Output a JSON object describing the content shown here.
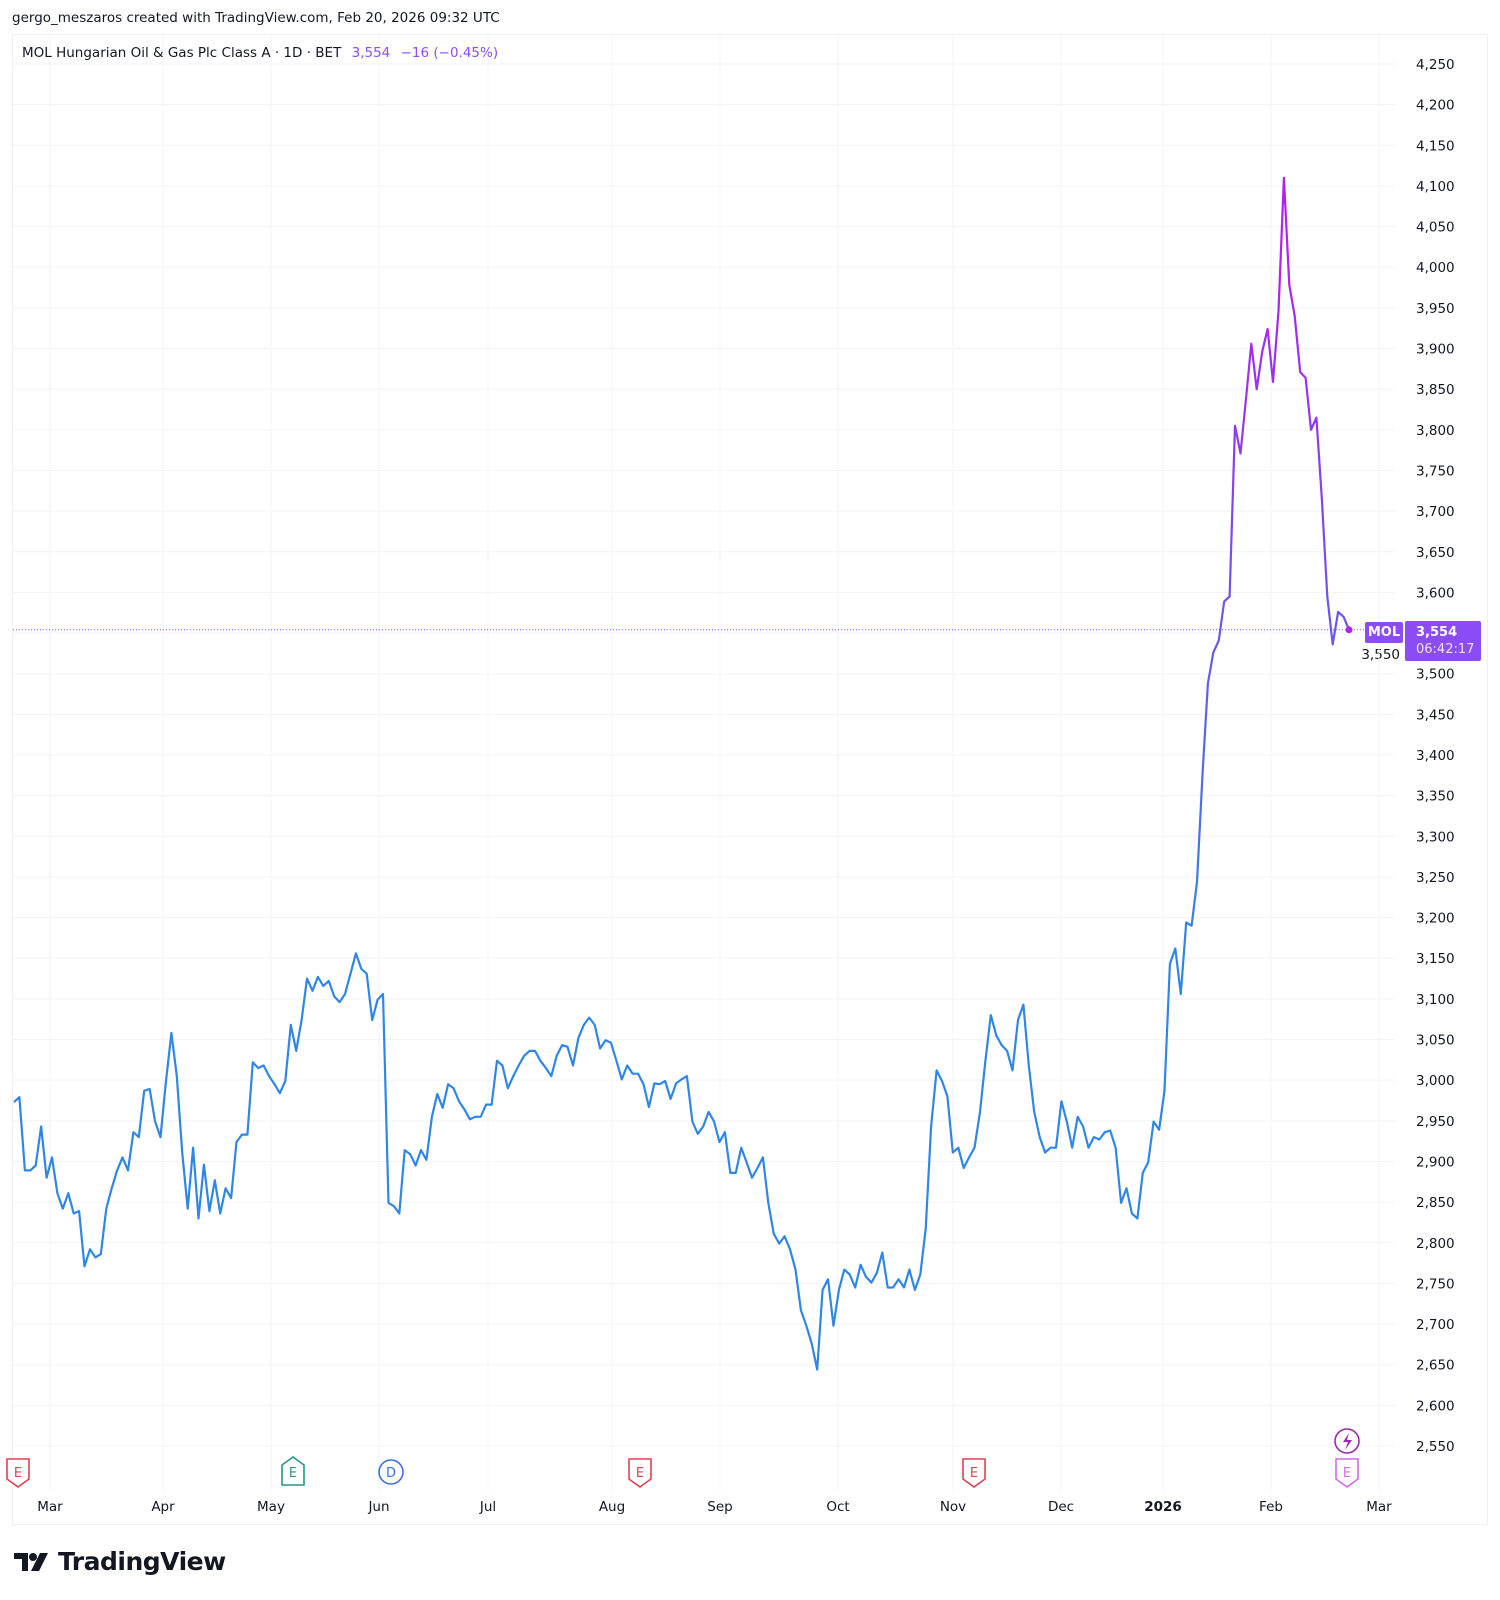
{
  "credit": "gergo_meszaros created with TradingView.com, Feb 20, 2026 09:32 UTC",
  "legend": {
    "symbol_name": "MOL Hungarian Oil & Gas Plc Class A · 1D · BET",
    "last": "3,554",
    "change": "−16 (−0.45%)"
  },
  "price_tag": {
    "symbol": "MOL",
    "price": "3,554",
    "countdown": "06:42:17"
  },
  "brand": "TradingView",
  "colors": {
    "line_start": "#2f86e6",
    "line_end": "#b021f2",
    "tag": "#8c4cf5",
    "earnings_red": "#e0404f",
    "earnings_green": "#22998a",
    "dividend_blue": "#3d6ee8",
    "earnings_upcoming": "#d16ae6"
  },
  "event_markers": [
    {
      "type": "earnings",
      "label": "E",
      "color": "#e0404f",
      "icon": "earnings-flag"
    },
    {
      "type": "earnings",
      "label": "E",
      "color": "#22998a",
      "icon": "earnings-flag"
    },
    {
      "type": "dividend",
      "label": "D",
      "color": "#3d6ee8",
      "icon": "dividend-circle"
    },
    {
      "type": "earnings",
      "label": "E",
      "color": "#e0404f",
      "icon": "earnings-flag"
    },
    {
      "type": "earnings",
      "label": "E",
      "color": "#e0404f",
      "icon": "earnings-flag"
    },
    {
      "type": "earnings",
      "label": "E",
      "color": "#d16ae6",
      "icon": "earnings-flag"
    },
    {
      "type": "news",
      "label": "",
      "color": "#9c27b0",
      "icon": "lightning-icon"
    }
  ],
  "chart_data": {
    "type": "line",
    "title": "",
    "xlabel": "",
    "ylabel": "",
    "x_ticks": [
      "Mar",
      "Apr",
      "May",
      "Jun",
      "Jul",
      "Aug",
      "Sep",
      "Oct",
      "Nov",
      "Dec",
      "2026",
      "Feb",
      "Mar"
    ],
    "y_ticks": [
      "2,550",
      "2,600",
      "2,650",
      "2,700",
      "2,750",
      "2,800",
      "2,850",
      "2,900",
      "2,950",
      "3,000",
      "3,050",
      "3,100",
      "3,150",
      "3,200",
      "3,250",
      "3,300",
      "3,350",
      "3,400",
      "3,450",
      "3,500",
      "3,550",
      "3,600",
      "3,650",
      "3,700",
      "3,750",
      "3,800",
      "3,850",
      "3,900",
      "3,950",
      "4,000",
      "4,050",
      "4,100",
      "4,150",
      "4,200",
      "4,250"
    ],
    "ylim": [
      2550,
      4250
    ],
    "grid": true,
    "last_value": 3554,
    "series": [
      {
        "values": [
          2973,
          2979,
          2889,
          2889,
          2895,
          2943,
          2880,
          2905,
          2861,
          2842,
          2861,
          2836,
          2839,
          2771,
          2792,
          2782,
          2786,
          2842,
          2867,
          2889,
          2905,
          2889,
          2936,
          2930,
          2987,
          2989,
          2949,
          2930,
          2999,
          3058,
          3005,
          2911,
          2842,
          2917,
          2830,
          2896,
          2839,
          2877,
          2836,
          2867,
          2855,
          2924,
          2933,
          2933,
          3022,
          3015,
          3018,
          3005,
          2995,
          2984,
          2999,
          3068,
          3036,
          3074,
          3125,
          3110,
          3127,
          3116,
          3122,
          3103,
          3096,
          3106,
          3131,
          3156,
          3137,
          3131,
          3074,
          3099,
          3106,
          2849,
          2845,
          2836,
          2914,
          2909,
          2895,
          2914,
          2902,
          2955,
          2983,
          2966,
          2995,
          2990,
          2974,
          2964,
          2952,
          2955,
          2955,
          2970,
          2970,
          3024,
          3018,
          2990,
          3005,
          3018,
          3030,
          3036,
          3036,
          3024,
          3015,
          3005,
          3030,
          3043,
          3041,
          3018,
          3052,
          3068,
          3077,
          3068,
          3039,
          3049,
          3046,
          3024,
          3001,
          3018,
          3008,
          3008,
          2995,
          2967,
          2996,
          2995,
          2999,
          2977,
          2996,
          3001,
          3005,
          2949,
          2934,
          2943,
          2961,
          2949,
          2924,
          2936,
          2886,
          2886,
          2917,
          2899,
          2880,
          2892,
          2905,
          2849,
          2811,
          2799,
          2808,
          2792,
          2767,
          2717,
          2698,
          2676,
          2644,
          2742,
          2755,
          2698,
          2742,
          2767,
          2761,
          2745,
          2773,
          2758,
          2751,
          2763,
          2788,
          2745,
          2745,
          2755,
          2745,
          2767,
          2742,
          2761,
          2817,
          2943,
          3012,
          2999,
          2980,
          2911,
          2917,
          2892,
          2905,
          2917,
          2961,
          3024,
          3080,
          3055,
          3043,
          3036,
          3012,
          3074,
          3093,
          3018,
          2961,
          2930,
          2911,
          2917,
          2917,
          2974,
          2949,
          2917,
          2955,
          2943,
          2917,
          2930,
          2927,
          2936,
          2938,
          2917,
          2849,
          2867,
          2836,
          2830,
          2886,
          2899,
          2949,
          2939,
          2987,
          3143,
          3162,
          3106,
          3194,
          3190,
          3244,
          3376,
          3488,
          3526,
          3541,
          3589,
          3595,
          3805,
          3771,
          3837,
          3906,
          3850,
          3896,
          3924,
          3859,
          3946,
          4110,
          3978,
          3940,
          3871,
          3864,
          3800,
          3815,
          3714,
          3595,
          3536,
          3576,
          3570,
          3554
        ]
      }
    ]
  }
}
